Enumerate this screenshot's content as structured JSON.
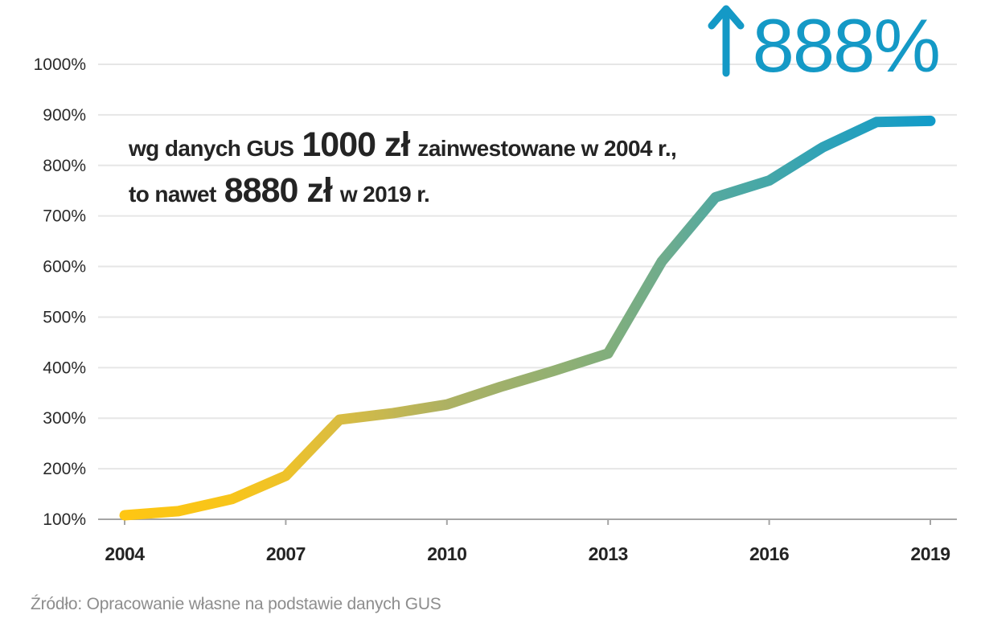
{
  "headline": {
    "line1_prefix": "wg danych GUS",
    "line1_big": "1000 zł",
    "line1_suffix": "zainwestowane w 2004 r.,",
    "line2_prefix": "to nawet",
    "line2_big": "8880 zł",
    "line2_suffix": "w 2019 r."
  },
  "indicator": {
    "arrow": "up-arrow",
    "value": "888%",
    "color": "#1499c6"
  },
  "source_note": "Źródło: Opracowanie własne na podstawie danych GUS",
  "chart_data": {
    "type": "line",
    "title": "",
    "xlabel": "",
    "ylabel": "",
    "x": [
      2004,
      2005,
      2006,
      2007,
      2008,
      2009,
      2010,
      2011,
      2012,
      2013,
      2014,
      2015,
      2016,
      2017,
      2018,
      2019
    ],
    "values": [
      108,
      116,
      140,
      186,
      297,
      310,
      327,
      362,
      394,
      428,
      610,
      737,
      770,
      836,
      886,
      888
    ],
    "xlim": [
      2004,
      2019
    ],
    "ylim": [
      100,
      1000
    ],
    "grid": true,
    "y_ticks": [
      {
        "value": 100,
        "label": "100%"
      },
      {
        "value": 200,
        "label": "200%"
      },
      {
        "value": 300,
        "label": "300%"
      },
      {
        "value": 400,
        "label": "400%"
      },
      {
        "value": 500,
        "label": "500%"
      },
      {
        "value": 600,
        "label": "600%"
      },
      {
        "value": 700,
        "label": "700%"
      },
      {
        "value": 800,
        "label": "800%"
      },
      {
        "value": 900,
        "label": "900%"
      },
      {
        "value": 1000,
        "label": "1000%"
      }
    ],
    "x_ticks": [
      {
        "value": 2004,
        "label": "2004"
      },
      {
        "value": 2007,
        "label": "2007"
      },
      {
        "value": 2010,
        "label": "2010"
      },
      {
        "value": 2013,
        "label": "2013"
      },
      {
        "value": 2016,
        "label": "2016"
      },
      {
        "value": 2019,
        "label": "2019"
      }
    ],
    "line_gradient": [
      {
        "offset": 0.0,
        "color": "#fec613"
      },
      {
        "offset": 0.13,
        "color": "#f8c51a"
      },
      {
        "offset": 0.2,
        "color": "#eec22a"
      },
      {
        "offset": 0.27,
        "color": "#d8bc43"
      },
      {
        "offset": 0.4,
        "color": "#adb163"
      },
      {
        "offset": 0.53,
        "color": "#93b072"
      },
      {
        "offset": 0.6,
        "color": "#81ae7c"
      },
      {
        "offset": 0.67,
        "color": "#6fac8d"
      },
      {
        "offset": 0.73,
        "color": "#55a99f"
      },
      {
        "offset": 0.8,
        "color": "#45a7a8"
      },
      {
        "offset": 0.87,
        "color": "#2ea2b8"
      },
      {
        "offset": 1.0,
        "color": "#129bc8"
      }
    ],
    "colors": {
      "axis": "#a5a5a5",
      "grid": "#e6e6e6",
      "tick_label": "#242424",
      "y_label": "#2a2a2a"
    }
  }
}
